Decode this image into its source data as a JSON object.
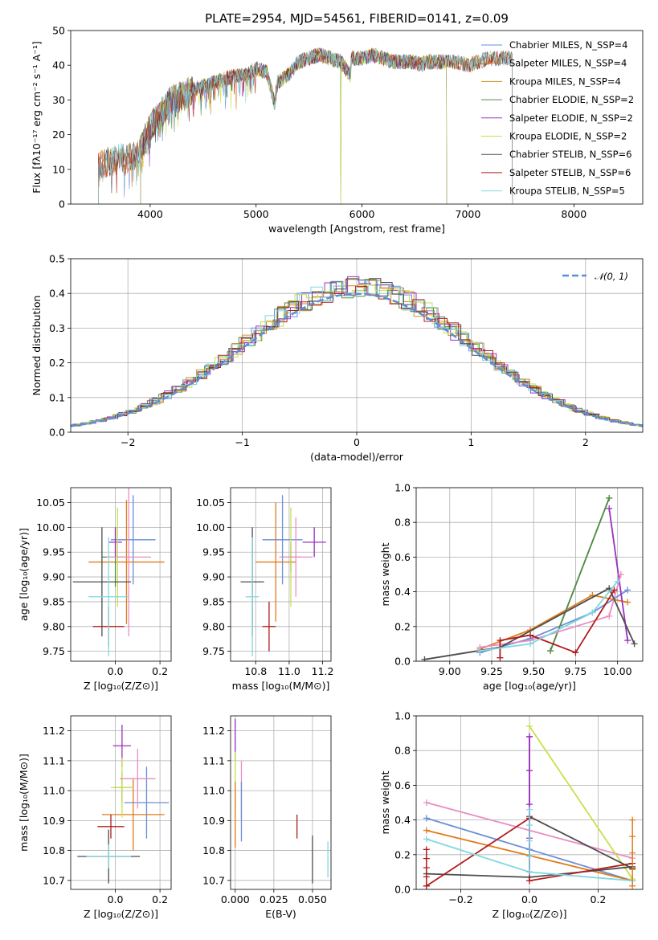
{
  "figure": {
    "title": "PLATE=2954, MJD=54561, FIBERID=0141, z=0.09"
  },
  "chart_data": [
    {
      "id": "spectrum",
      "type": "line",
      "title": "PLATE=2954, MJD=54561, FIBERID=0141, z=0.09",
      "xlabel": "wavelength [Angstrom, rest frame]",
      "ylabel": "Flux [fλ10⁻¹⁷ erg cm⁻² s⁻¹ A⁻¹]",
      "xlim": [
        3250,
        8650
      ],
      "ylim": [
        0,
        50
      ],
      "xticks": [
        4000,
        5000,
        6000,
        7000,
        8000
      ],
      "yticks": [
        0,
        10,
        20,
        30,
        40,
        50
      ],
      "grid": false,
      "legend_position": "top-right",
      "x": [
        3510,
        3600,
        3700,
        3800,
        3900,
        4000,
        4100,
        4200,
        4300,
        4400,
        4500,
        4600,
        4700,
        4800,
        4900,
        5000,
        5100,
        5175,
        5200,
        5300,
        5400,
        5500,
        5600,
        5700,
        5800,
        5890,
        5900,
        6000,
        6100,
        6200,
        6300,
        6400,
        6500,
        6563,
        6600,
        6700,
        6800,
        6900,
        7000,
        7100,
        7200,
        7300,
        7400
      ],
      "y": [
        11,
        12,
        13,
        13,
        15,
        22,
        26,
        30,
        31,
        33,
        34,
        35,
        36,
        37,
        37,
        39,
        38,
        29,
        35,
        37,
        41,
        42,
        43,
        42,
        41,
        37,
        42,
        42,
        43,
        42,
        41,
        41,
        41,
        40,
        41,
        41,
        41,
        41,
        40,
        41,
        42,
        42,
        42
      ],
      "series": [
        {
          "name": "Chabrier MILES, N_SSP=4",
          "color": "#6a8ed8",
          "cut_low": 3510,
          "cut_high": 7420,
          "dip": null
        },
        {
          "name": "Salpeter MILES, N_SSP=4",
          "color": "#e07b1c",
          "cut_low": 3510,
          "cut_high": 7420,
          "dip": null
        },
        {
          "name": "Kroupa MILES, N_SSP=4",
          "color": "#c8962a",
          "cut_low": 3510,
          "cut_high": 7420,
          "dip": null
        },
        {
          "name": "Chabrier ELODIE, N_SSP=2",
          "color": "#4f8a4f",
          "cut_low": 3910,
          "cut_high": 6800,
          "dip": 5800
        },
        {
          "name": "Salpeter ELODIE, N_SSP=2",
          "color": "#9b30c0",
          "cut_low": 3910,
          "cut_high": 6800,
          "dip": null
        },
        {
          "name": "Kroupa ELODIE, N_SSP=2",
          "color": "#c9e04a",
          "cut_low": 3910,
          "cut_high": 6800,
          "dip": 5800
        },
        {
          "name": "Chabrier STELIB, N_SSP=6",
          "color": "#4d4d4d",
          "cut_low": 3510,
          "cut_high": 7420,
          "dip": null
        },
        {
          "name": "Salpeter STELIB, N_SSP=6",
          "color": "#b01c1c",
          "cut_low": 3510,
          "cut_high": 7420,
          "dip": null
        },
        {
          "name": "Kroupa STELIB, N_SSP=5",
          "color": "#7fd8e0",
          "cut_low": 3510,
          "cut_high": 7420,
          "dip": null
        }
      ]
    },
    {
      "id": "residuals",
      "type": "histogram",
      "xlabel": "(data-model)/error",
      "ylabel": "Normed distribution",
      "xlim": [
        -2.5,
        2.5
      ],
      "ylim": [
        0,
        0.5
      ],
      "xticks": [
        -2,
        -1,
        0,
        1,
        2
      ],
      "yticks": [
        0.0,
        0.1,
        0.2,
        0.3,
        0.4,
        0.5
      ],
      "grid": true,
      "legend_position": "top-right",
      "reference_curve": {
        "name": "𝒩(0, 1)",
        "color": "#5b8ed6",
        "mean": 0,
        "sigma": 1
      },
      "bin_width": 0.1,
      "series": [
        {
          "name": "Chabrier MILES",
          "color": "#6a8ed8",
          "offset": 0.02
        },
        {
          "name": "Salpeter MILES",
          "color": "#e07b1c",
          "offset": -0.01
        },
        {
          "name": "Kroupa MILES",
          "color": "#c8962a",
          "offset": 0.0
        },
        {
          "name": "Chabrier ELODIE",
          "color": "#4f8a4f",
          "offset": 0.03
        },
        {
          "name": "Salpeter ELODIE",
          "color": "#9b30c0",
          "offset": -0.02
        },
        {
          "name": "Kroupa ELODIE",
          "color": "#c9e04a",
          "offset": 0.04
        },
        {
          "name": "Chabrier STELIB",
          "color": "#4d4d4d",
          "offset": -0.01
        },
        {
          "name": "Salpeter STELIB",
          "color": "#b01c1c",
          "offset": 0.01
        },
        {
          "name": "Kroupa STELIB",
          "color": "#7fd8e0",
          "offset": 0.0
        }
      ]
    },
    {
      "id": "age-vs-Z",
      "type": "errorbar",
      "xlabel": "Z [log₁₀(Z/Z⊙)]",
      "ylabel": "age  [log₁₀(age/yr)]",
      "xlim": [
        -0.2,
        0.25
      ],
      "ylim": [
        9.73,
        10.08
      ],
      "xticks": [
        0.0,
        0.2
      ],
      "yticks": [
        9.75,
        9.8,
        9.85,
        9.9,
        9.95,
        10.0,
        10.05
      ],
      "grid": true,
      "points": [
        {
          "color": "#6a8ed8",
          "x": 0.08,
          "xerr": 0.1,
          "y": 9.975,
          "yerr": 0.09
        },
        {
          "color": "#e07b1c",
          "x": 0.05,
          "xerr": 0.17,
          "y": 9.93,
          "yerr": 0.125
        },
        {
          "color": "#4f8a4f",
          "x": 0.0,
          "xerr": 0.06,
          "y": 9.94,
          "yerr": 0.06
        },
        {
          "color": "#9b30c0",
          "x": 0.0,
          "xerr": 0.03,
          "y": 9.97,
          "yerr": 0.03
        },
        {
          "color": "#c9e04a",
          "x": 0.01,
          "xerr": 0.04,
          "y": 9.94,
          "yerr": 0.1
        },
        {
          "color": "#e98dc4",
          "x": 0.06,
          "xerr": 0.1,
          "y": 9.94,
          "yerr": 0.16
        },
        {
          "color": "#4d4d4d",
          "x": -0.06,
          "xerr": 0.13,
          "y": 9.89,
          "yerr": 0.11
        },
        {
          "color": "#b01c1c",
          "x": -0.03,
          "xerr": 0.07,
          "y": 9.8,
          "yerr": 0.04
        },
        {
          "color": "#7fd8e0",
          "x": -0.03,
          "xerr": 0.09,
          "y": 9.86,
          "yerr": 0.12
        }
      ]
    },
    {
      "id": "age-vs-mass",
      "type": "errorbar",
      "xlabel": "mass [log₁₀(M/M⊙)]",
      "ylabel": "",
      "xlim": [
        10.65,
        11.25
      ],
      "ylim": [
        9.73,
        10.08
      ],
      "xticks": [
        10.8,
        11.0,
        11.2
      ],
      "yticks": [
        9.75,
        9.8,
        9.85,
        9.9,
        9.95,
        10.0,
        10.05
      ],
      "grid": true,
      "points": [
        {
          "color": "#6a8ed8",
          "x": 10.96,
          "xerr": 0.12,
          "y": 9.975,
          "yerr": 0.09
        },
        {
          "color": "#e07b1c",
          "x": 10.92,
          "xerr": 0.12,
          "y": 9.93,
          "yerr": 0.12
        },
        {
          "color": "#4f8a4f",
          "x": 11.01,
          "xerr": 0.06,
          "y": 9.94,
          "yerr": 0.03
        },
        {
          "color": "#9b30c0",
          "x": 11.15,
          "xerr": 0.07,
          "y": 9.97,
          "yerr": 0.03
        },
        {
          "color": "#c9e04a",
          "x": 11.01,
          "xerr": 0.05,
          "y": 9.94,
          "yerr": 0.1
        },
        {
          "color": "#e98dc4",
          "x": 11.04,
          "xerr": 0.1,
          "y": 9.94,
          "yerr": 0.08
        },
        {
          "color": "#4d4d4d",
          "x": 10.78,
          "xerr": 0.07,
          "y": 9.89,
          "yerr": 0.11
        },
        {
          "color": "#b01c1c",
          "x": 10.88,
          "xerr": 0.04,
          "y": 9.8,
          "yerr": 0.05
        },
        {
          "color": "#7fd8e0",
          "x": 10.78,
          "xerr": 0.04,
          "y": 9.86,
          "yerr": 0.12
        }
      ]
    },
    {
      "id": "massweight-vs-age",
      "type": "line",
      "xlabel": "age  [log₁₀(age/yr)]",
      "ylabel": "mass weight",
      "xlim": [
        8.8,
        10.15
      ],
      "ylim": [
        0,
        1.0
      ],
      "xticks": [
        9.0,
        9.25,
        9.5,
        9.75,
        10.0
      ],
      "yticks": [
        0.0,
        0.2,
        0.4,
        0.6,
        0.8,
        1.0
      ],
      "grid": true,
      "series": [
        {
          "color": "#6a8ed8",
          "x": [
            9.18,
            9.48,
            9.85,
            10.06
          ],
          "y": [
            0.05,
            0.13,
            0.28,
            0.41
          ]
        },
        {
          "color": "#e07b1c",
          "x": [
            9.18,
            9.48,
            9.85,
            10.06
          ],
          "y": [
            0.07,
            0.18,
            0.38,
            0.34
          ]
        },
        {
          "color": "#c9e04a",
          "x": [
            9.6,
            9.95
          ],
          "y": [
            0.06,
            0.94
          ]
        },
        {
          "color": "#4f8a4f",
          "x": [
            9.6,
            9.95
          ],
          "y": [
            0.06,
            0.94
          ]
        },
        {
          "color": "#9b30c0",
          "x": [
            9.95,
            10.06
          ],
          "y": [
            0.88,
            0.12
          ]
        },
        {
          "color": "#e98dc4",
          "x": [
            9.18,
            9.48,
            9.95,
            10.02
          ],
          "y": [
            0.08,
            0.12,
            0.26,
            0.5
          ]
        },
        {
          "color": "#4d4d4d",
          "x": [
            8.85,
            9.3,
            9.95,
            10.1
          ],
          "y": [
            0.01,
            0.08,
            0.42,
            0.1
          ]
        },
        {
          "color": "#b01c1c",
          "x": [
            9.3,
            9.3,
            9.48,
            9.75,
            9.98
          ],
          "y": [
            0.02,
            0.12,
            0.15,
            0.05,
            0.41
          ]
        },
        {
          "color": "#7fd8e0",
          "x": [
            9.18,
            9.48,
            9.85,
            10.0
          ],
          "y": [
            0.06,
            0.1,
            0.28,
            0.46
          ]
        }
      ]
    },
    {
      "id": "mass-vs-Z",
      "type": "errorbar",
      "xlabel": "Z [log₁₀(Z/Z⊙)]",
      "ylabel": "mass [log₁₀(M/M⊙)]",
      "xlim": [
        -0.2,
        0.25
      ],
      "ylim": [
        10.67,
        11.25
      ],
      "xticks": [
        0.0,
        0.2
      ],
      "yticks": [
        10.7,
        10.8,
        10.9,
        11.0,
        11.1,
        11.2
      ],
      "grid": true,
      "points": [
        {
          "color": "#6a8ed8",
          "x": 0.14,
          "xerr": 0.1,
          "y": 10.96,
          "yerr": 0.12
        },
        {
          "color": "#e07b1c",
          "x": 0.08,
          "xerr": 0.14,
          "y": 10.92,
          "yerr": 0.12
        },
        {
          "color": "#4f8a4f",
          "x": 0.03,
          "xerr": 0.04,
          "y": 11.01,
          "yerr": 0.05
        },
        {
          "color": "#9b30c0",
          "x": 0.03,
          "xerr": 0.04,
          "y": 11.15,
          "yerr": 0.07
        },
        {
          "color": "#c9e04a",
          "x": 0.03,
          "xerr": 0.05,
          "y": 11.01,
          "yerr": 0.1
        },
        {
          "color": "#e98dc4",
          "x": 0.1,
          "xerr": 0.08,
          "y": 11.04,
          "yerr": 0.1
        },
        {
          "color": "#4d4d4d",
          "x": -0.03,
          "xerr": 0.14,
          "y": 10.78,
          "yerr": 0.09
        },
        {
          "color": "#b01c1c",
          "x": -0.02,
          "xerr": 0.06,
          "y": 10.88,
          "yerr": 0.04
        },
        {
          "color": "#7fd8e0",
          "x": -0.03,
          "xerr": 0.1,
          "y": 10.78,
          "yerr": 0.04
        }
      ]
    },
    {
      "id": "mass-vs-EBV",
      "type": "errorbar",
      "xlabel": "E(B-V)",
      "ylabel": "",
      "xlim": [
        -0.003,
        0.062
      ],
      "ylim": [
        10.67,
        11.25
      ],
      "xticks": [
        0.0,
        0.025,
        0.05
      ],
      "yticks": [
        10.7,
        10.8,
        10.9,
        11.0,
        11.1,
        11.2
      ],
      "grid": true,
      "points": [
        {
          "color": "#9b30c0",
          "x": 0.0,
          "xerr": 0,
          "y": 11.17,
          "yerr": 0.07
        },
        {
          "color": "#c9e04a",
          "x": 0.0,
          "xerr": 0,
          "y": 11.03,
          "yerr": 0.1
        },
        {
          "color": "#e07b1c",
          "x": 0.0,
          "xerr": 0,
          "y": 10.92,
          "yerr": 0.11
        },
        {
          "color": "#e98dc4",
          "x": 0.004,
          "xerr": 0,
          "y": 11.0,
          "yerr": 0.1
        },
        {
          "color": "#6a8ed8",
          "x": 0.004,
          "xerr": 0,
          "y": 10.93,
          "yerr": 0.1
        },
        {
          "color": "#b01c1c",
          "x": 0.04,
          "xerr": 0,
          "y": 10.88,
          "yerr": 0.04
        },
        {
          "color": "#4d4d4d",
          "x": 0.05,
          "xerr": 0,
          "y": 10.77,
          "yerr": 0.08
        },
        {
          "color": "#7fd8e0",
          "x": 0.06,
          "xerr": 0,
          "y": 10.77,
          "yerr": 0.06
        }
      ]
    },
    {
      "id": "massweight-vs-Z",
      "type": "line",
      "xlabel": "Z [log₁₀(Z/Z⊙)]",
      "ylabel": "mass weight",
      "xlim": [
        -0.33,
        0.33
      ],
      "ylim": [
        0,
        1.0
      ],
      "xticks": [
        -0.2,
        0.0,
        0.2
      ],
      "yticks": [
        0.0,
        0.2,
        0.4,
        0.6,
        0.8,
        1.0
      ],
      "grid": true,
      "series": [
        {
          "color": "#6a8ed8",
          "x": [
            -0.3,
            0.0,
            0.3
          ],
          "y": [
            0.41,
            0.23,
            0.05
          ]
        },
        {
          "color": "#e07b1c",
          "x": [
            -0.3,
            0.3
          ],
          "y": [
            0.34,
            0.05
          ]
        },
        {
          "color": "#e98dc4",
          "x": [
            -0.3,
            0.3
          ],
          "y": [
            0.5,
            0.18
          ]
        },
        {
          "color": "#c9e04a",
          "x": [
            0.0,
            0.3
          ],
          "y": [
            0.94,
            0.06
          ]
        },
        {
          "color": "#9b30c0",
          "x": [
            0.0,
            0.0
          ],
          "y": [
            0.88,
            0.1
          ]
        },
        {
          "color": "#4d4d4d",
          "x": [
            -0.3,
            0.0,
            0.3
          ],
          "y": [
            0.09,
            0.07,
            0.13
          ]
        },
        {
          "color": "#4d4d4d",
          "x": [
            0.0,
            0.3
          ],
          "y": [
            0.42,
            0.12
          ]
        },
        {
          "color": "#b01c1c",
          "x": [
            -0.3,
            0.0,
            0.0,
            0.3
          ],
          "y": [
            0.02,
            0.41,
            0.05,
            0.15
          ]
        },
        {
          "color": "#7fd8e0",
          "x": [
            -0.3,
            0.0,
            0.3
          ],
          "y": [
            0.29,
            0.1,
            0.05
          ]
        }
      ],
      "vertical_markers": [
        {
          "color": "#b01c1c",
          "x": -0.3,
          "y": [
            0.02,
            0.23
          ]
        },
        {
          "color": "#e07b1c",
          "x": 0.3,
          "y": [
            0.02,
            0.4
          ]
        },
        {
          "color": "#9b30c0",
          "x": 0.0,
          "y": [
            0.1,
            0.88
          ]
        },
        {
          "color": "#7fd8e0",
          "x": 0.0,
          "y": [
            0.1,
            0.46
          ]
        }
      ]
    }
  ]
}
